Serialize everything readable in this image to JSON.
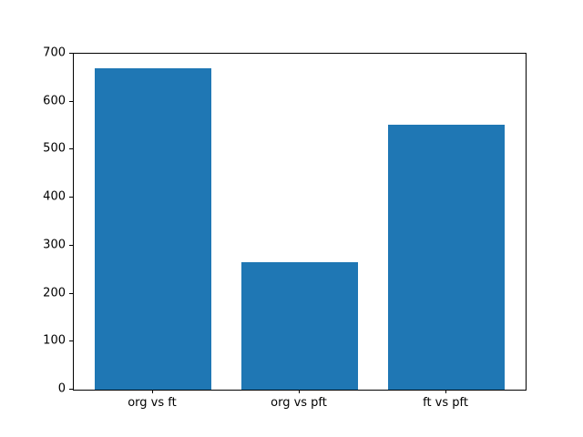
{
  "chart_data": {
    "type": "bar",
    "categories": [
      "org vs ft",
      "org vs pft",
      "ft vs pft"
    ],
    "values": [
      670,
      265,
      553
    ],
    "title": "",
    "xlabel": "",
    "ylabel": "",
    "ylim": [
      0,
      700
    ],
    "yticks": [
      0,
      100,
      200,
      300,
      400,
      500,
      600,
      700
    ],
    "bar_color": "#1f77b4",
    "bar_width_fraction": 0.8,
    "grid": false,
    "legend_position": "none",
    "background_color": "#ffffff",
    "axis_color": "#000000"
  }
}
